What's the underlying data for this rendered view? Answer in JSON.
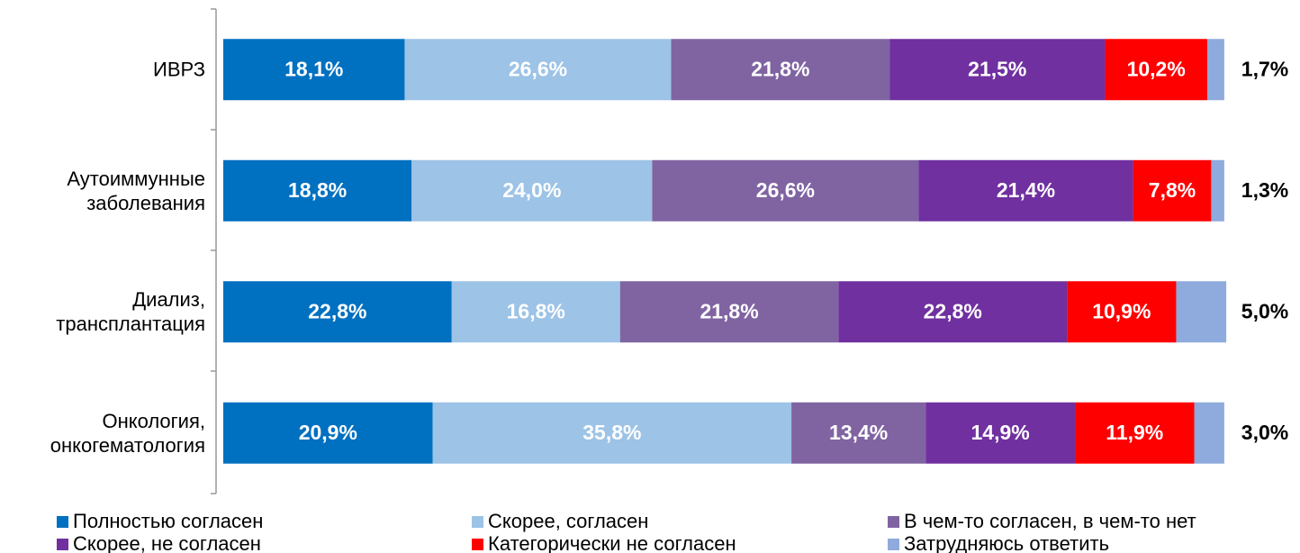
{
  "chart_data": {
    "type": "stacked_bar_horizontal",
    "categories": [
      "ИВРЗ",
      "Аутоиммунные\nзаболевания",
      "Диализ,\nтрансплантация",
      "Онкология,\nонкогематология"
    ],
    "xlim": [
      0,
      100
    ],
    "series": [
      {
        "name": "Полностью согласен",
        "color": "#0070c0",
        "values": [
          18.1,
          18.8,
          22.8,
          20.9
        ],
        "value_labels": [
          "18,1%",
          "18,8%",
          "22,8%",
          "20,9%"
        ]
      },
      {
        "name": "Скорее, согласен",
        "color": "#9dc3e6",
        "values": [
          26.6,
          24.0,
          16.8,
          35.8
        ],
        "value_labels": [
          "26,6%",
          "24,0%",
          "16,8%",
          "35,8%"
        ]
      },
      {
        "name": "В чем-то согласен, в чем-то нет",
        "color": "#8064a2",
        "values": [
          21.8,
          26.6,
          21.8,
          13.4
        ],
        "value_labels": [
          "21,8%",
          "26,6%",
          "21,8%",
          "13,4%"
        ]
      },
      {
        "name": "Скорее, не согласен",
        "color": "#7030a0",
        "values": [
          21.5,
          21.4,
          22.8,
          14.9
        ],
        "value_labels": [
          "21,5%",
          "21,4%",
          "22,8%",
          "14,9%"
        ]
      },
      {
        "name": "Категорически не согласен",
        "color": "#ff0000",
        "values": [
          10.2,
          7.8,
          10.9,
          11.9
        ],
        "value_labels": [
          "10,2%",
          "7,8%",
          "10,9%",
          "11,9%"
        ]
      },
      {
        "name": "Затрудняюсь ответить",
        "color": "#8faadc",
        "values": [
          1.7,
          1.3,
          5.0,
          3.0
        ],
        "value_labels": [
          "1,7%",
          "1,3%",
          "5,0%",
          "3,0%"
        ]
      }
    ]
  }
}
